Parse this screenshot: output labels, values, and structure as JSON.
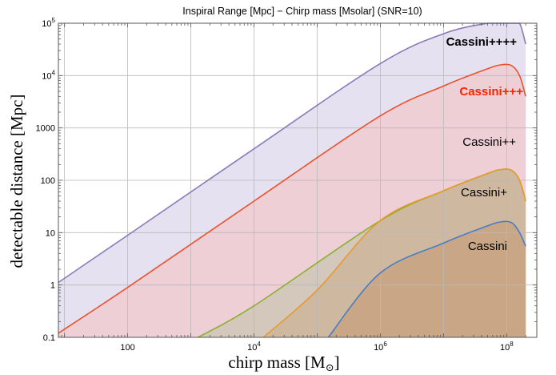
{
  "chart_data": {
    "type": "area",
    "title": "Inspiral Range [Mpc] − Chirp mass [Msolar] (SNR=10)",
    "xlabel": "chirp mass [M",
    "xlabel_sub": "⊙",
    "xlabel_close": "]",
    "ylabel": "detectable distance [Mpc]",
    "xscale": "log",
    "yscale": "log",
    "xlim": [
      8,
      300000000
    ],
    "ylim": [
      0.1,
      100000
    ],
    "grid": true,
    "x_ticks": [
      {
        "value": 100,
        "label": "100",
        "exp": ""
      },
      {
        "value": 10000,
        "label": "10",
        "exp": "4"
      },
      {
        "value": 1000000,
        "label": "10",
        "exp": "6"
      },
      {
        "value": 100000000,
        "label": "10",
        "exp": "8"
      }
    ],
    "y_ticks": [
      {
        "value": 0.1,
        "label": "0.1",
        "exp": ""
      },
      {
        "value": 1,
        "label": "1",
        "exp": ""
      },
      {
        "value": 10,
        "label": "10",
        "exp": ""
      },
      {
        "value": 100,
        "label": "100",
        "exp": ""
      },
      {
        "value": 1000,
        "label": "1000",
        "exp": ""
      },
      {
        "value": 10000,
        "label": "10",
        "exp": "4"
      },
      {
        "value": 100000,
        "label": "10",
        "exp": "5"
      }
    ],
    "x_grid": [
      10,
      100,
      1000,
      10000,
      100000,
      1000000,
      10000000,
      100000000
    ],
    "y_grid": [
      0.1,
      1,
      10,
      100,
      1000,
      10000,
      100000
    ],
    "series": [
      {
        "name": "Cassini++++",
        "color": "#8a7bb8",
        "fill": "#e5e1f1",
        "label_color": "#000000",
        "bold": true,
        "x": [
          8,
          100,
          10000,
          1000000,
          10000000,
          50000000,
          80000000,
          120000000,
          160000000,
          200000000
        ],
        "y": [
          1.12,
          8.9,
          400,
          17000,
          63000,
          130000,
          155000,
          155000,
          100000,
          40000
        ]
      },
      {
        "name": "Cassini+++",
        "color": "#e8532e",
        "fill": "#edcfd5",
        "label_color": "#ff2200",
        "bold": true,
        "x": [
          8,
          100,
          10000,
          1000000,
          10000000,
          50000000,
          80000000,
          120000000,
          160000000,
          200000000
        ],
        "y": [
          0.12,
          0.9,
          40,
          1700,
          6300,
          13500,
          16000,
          15500,
          10000,
          4000
        ]
      },
      {
        "name": "Cassini++",
        "color": "#8bb030",
        "fill": "#d4c8bc",
        "label_color": "#000000",
        "bold": false,
        "x": [
          1300,
          10000,
          1000000,
          10000000,
          50000000,
          80000000,
          120000000,
          160000000,
          200000000
        ],
        "y": [
          0.1,
          0.4,
          17,
          63,
          135,
          160,
          155,
          100,
          40
        ]
      },
      {
        "name": "Cassini+",
        "color": "#e89a28",
        "fill": "#cfb8a0",
        "label_color": "#000000",
        "bold": false,
        "x": [
          14000,
          100000,
          1000000,
          10000000,
          50000000,
          80000000,
          120000000,
          160000000,
          200000000
        ],
        "y": [
          0.1,
          0.8,
          17,
          63,
          135,
          160,
          155,
          100,
          40
        ]
      },
      {
        "name": "Cassini",
        "color": "#4a7cc4",
        "fill": "#c8a686",
        "label_color": "#000000",
        "bold": false,
        "x": [
          150000,
          1000000,
          10000000,
          50000000,
          80000000,
          120000000,
          160000000,
          200000000
        ],
        "y": [
          0.1,
          1.7,
          6.3,
          13.5,
          16,
          15.5,
          10,
          5.5
        ]
      }
    ]
  }
}
